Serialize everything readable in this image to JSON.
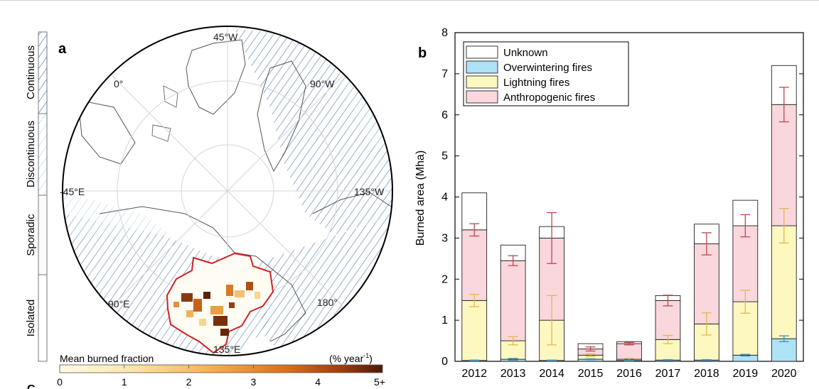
{
  "panel_a": {
    "label": "a",
    "permafrost_classes": [
      "Continuous",
      "Discontinuous",
      "Sporadic",
      "Isolated"
    ],
    "longitude_labels": [
      "45°W",
      "0°",
      "90°W",
      "-45°E",
      "135°W",
      "90°E",
      "180°",
      "135°E"
    ],
    "colorbar": {
      "title": "Mean burned fraction",
      "unit": "(% year",
      "unit_exp": "-1",
      "unit_close": ")",
      "ticks": [
        "0",
        "1",
        "2",
        "3",
        "4",
        "5+"
      ]
    },
    "colors": {
      "fire_boundary": "#d42020",
      "hatch": "#4a73b0",
      "ocean": "#ffffff",
      "coast": "#555555"
    }
  },
  "panel_b": {
    "label": "b",
    "legend": [
      "Unknown",
      "Overwintering fires",
      "Lightning fires",
      "Anthropogenic fires"
    ]
  },
  "stray_text": "C",
  "chart_data": {
    "type": "bar",
    "stacked": true,
    "categories": [
      "2012",
      "2013",
      "2014",
      "2015",
      "2016",
      "2017",
      "2018",
      "2019",
      "2020"
    ],
    "ylabel": "Burned area (Mha)",
    "ylim": [
      0,
      8
    ],
    "yticks": [
      "0",
      "1",
      "2",
      "3",
      "4",
      "5",
      "6",
      "7",
      "8"
    ],
    "legend_position": "top-left",
    "series": [
      {
        "name": "Overwintering fires",
        "color": "#aee3f5",
        "values": [
          0.02,
          0.05,
          0.02,
          0.05,
          0.02,
          0.03,
          0.03,
          0.15,
          0.55
        ]
      },
      {
        "name": "Lightning fires",
        "color": "#fcf8c0",
        "values": [
          1.46,
          0.45,
          0.98,
          0.1,
          0.03,
          0.5,
          0.88,
          1.3,
          2.75
        ]
      },
      {
        "name": "Anthropogenic fires",
        "color": "#f9d7dd",
        "values": [
          1.72,
          1.95,
          2.0,
          0.15,
          0.38,
          0.95,
          1.95,
          1.85,
          2.95
        ]
      },
      {
        "name": "Unknown",
        "color": "#ffffff",
        "values": [
          0.9,
          0.38,
          0.28,
          0.13,
          0.05,
          0.12,
          0.48,
          0.62,
          0.95
        ]
      }
    ],
    "error_bars": [
      {
        "series": "Lightning fires",
        "color": "#e3b84a",
        "tops": [
          1.48,
          0.5,
          1.0,
          0.15,
          0.05,
          0.53,
          0.91,
          1.45,
          3.3
        ],
        "err": [
          0.15,
          0.1,
          0.6,
          0.03,
          0.02,
          0.1,
          0.27,
          0.28,
          0.42
        ]
      },
      {
        "series": "Anthropogenic fires",
        "color": "#c0464a",
        "tops": [
          3.2,
          2.45,
          3.0,
          0.3,
          0.43,
          1.48,
          2.86,
          3.3,
          6.25
        ],
        "err": [
          0.15,
          0.12,
          0.62,
          0.05,
          0.03,
          0.13,
          0.27,
          0.27,
          0.42
        ]
      },
      {
        "series": "Overwintering fires",
        "color": "#3f8fb5",
        "tops": [
          0.02,
          0.05,
          0.02,
          0.05,
          0.02,
          0.03,
          0.03,
          0.15,
          0.55
        ],
        "err": [
          0.01,
          0.02,
          0.01,
          0.01,
          0.01,
          0.01,
          0.01,
          0.02,
          0.07
        ]
      }
    ]
  }
}
